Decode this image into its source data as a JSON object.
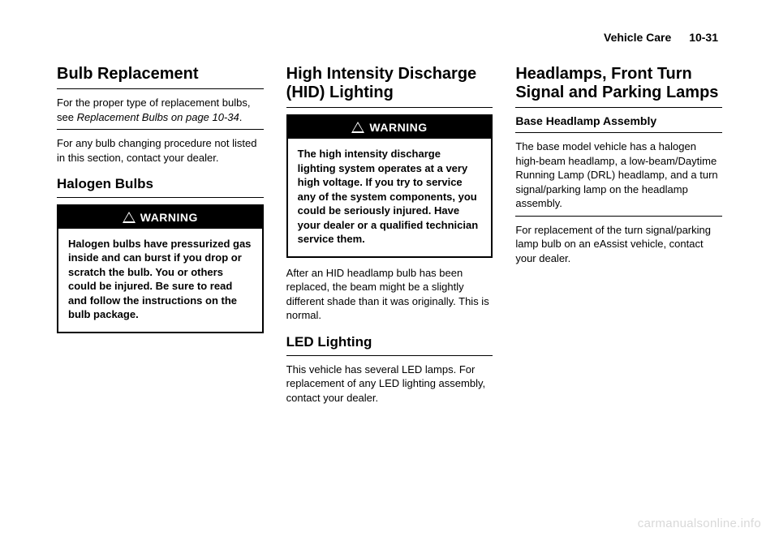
{
  "header": {
    "chapter": "Vehicle Care",
    "page": "10-31"
  },
  "col1": {
    "h1": "Bulb Replacement",
    "p1a": "For the proper type of replacement bulbs, see ",
    "p1b": "Replacement Bulbs on page 10-34",
    "p1c": ".",
    "p2": "For any bulb changing procedure not listed in this section, contact your dealer.",
    "h2": "Halogen Bulbs",
    "warn_label": "WARNING",
    "warn_body": "Halogen bulbs have pressurized gas inside and can burst if you drop or scratch the bulb. You or others could be injured. Be sure to read and follow the instructions on the bulb package."
  },
  "col2": {
    "h1": "High Intensity Discharge (HID) Lighting",
    "warn_label": "WARNING",
    "warn_body": "The high intensity discharge lighting system operates at a very high voltage. If you try to service any of the system components, you could be seriously injured. Have your dealer or a qualified technician service them.",
    "p1": "After an HID headlamp bulb has been replaced, the beam might be a slightly different shade than it was originally. This is normal.",
    "h2": "LED Lighting",
    "p2": "This vehicle has several LED lamps. For replacement of any LED lighting assembly, contact your dealer."
  },
  "col3": {
    "h1": "Headlamps, Front Turn Signal and Parking Lamps",
    "h3": "Base Headlamp Assembly",
    "p1": "The base model vehicle has a halogen high-beam headlamp, a low-beam/Daytime Running Lamp (DRL) headlamp, and a turn signal/parking lamp on the headlamp assembly.",
    "p2": "For replacement of the turn signal/parking lamp bulb on an eAssist vehicle, contact your dealer."
  },
  "watermark": "carmanualsonline.info"
}
